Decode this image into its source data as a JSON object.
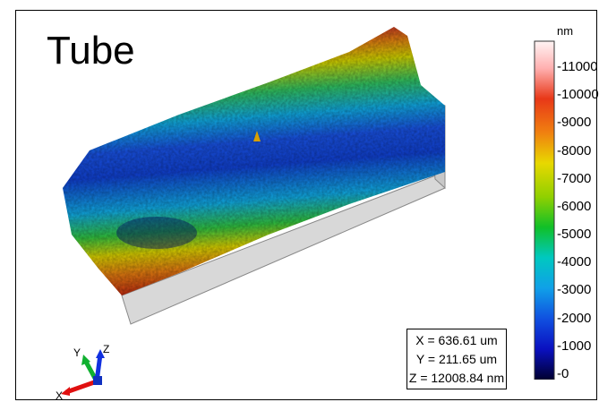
{
  "title": "Tube",
  "colorbar": {
    "unit": "nm",
    "ticks": [
      "11000",
      "10000",
      "9000",
      "8000",
      "7000",
      "6000",
      "5000",
      "4000",
      "3000",
      "2000",
      "1000",
      "0"
    ],
    "stops": [
      "#fff2f2",
      "#ff9a9a",
      "#e03010",
      "#f07a10",
      "#e8d800",
      "#8ed000",
      "#10c020",
      "#00c8c0",
      "#10a0e8",
      "#1050e0",
      "#0a10c0",
      "#000040"
    ]
  },
  "readout": {
    "x": "X = 636.61 um",
    "y": "Y = 211.65 um",
    "z": "Z = 12008.84 nm"
  },
  "axes_triad": {
    "x_label": "X",
    "y_label": "Y",
    "z_label": "Z"
  }
}
